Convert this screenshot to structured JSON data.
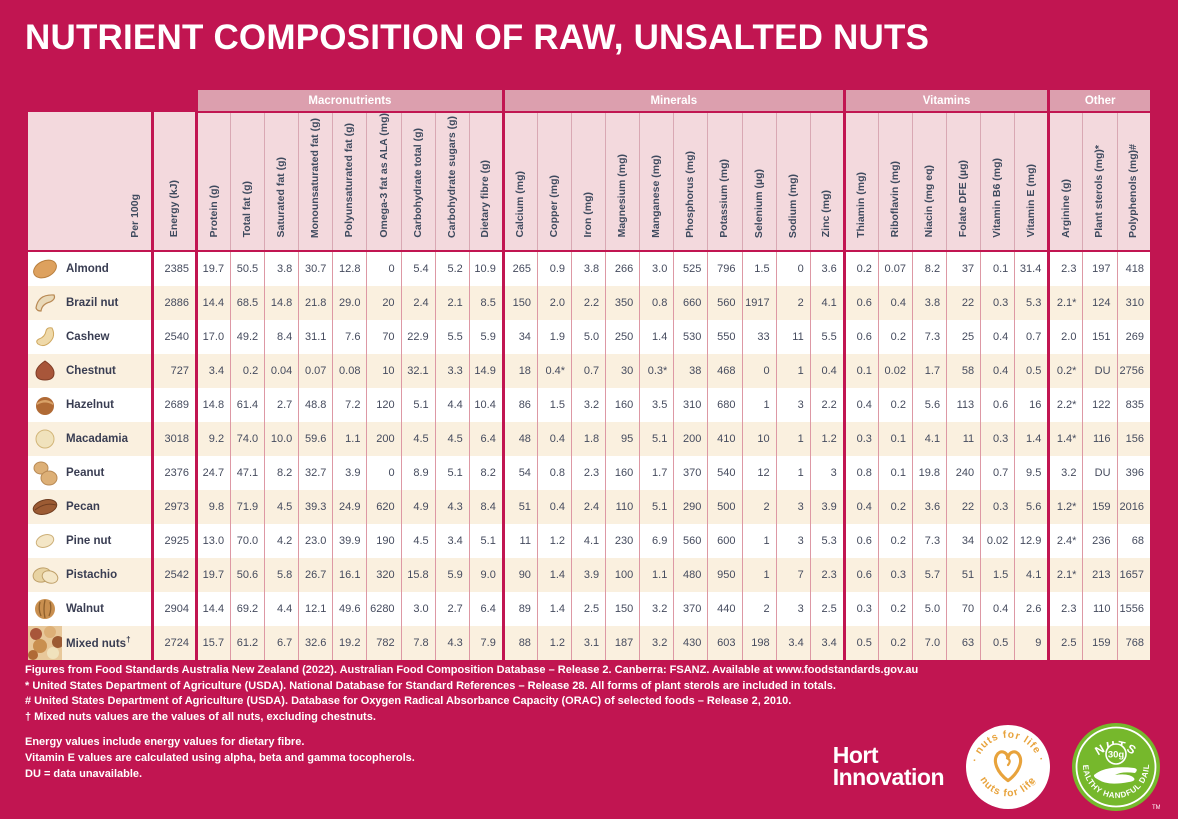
{
  "page_title": "NUTRIENT COMPOSITION OF RAW, UNSALTED NUTS",
  "colors": {
    "background": "#c11551",
    "group_band": "#dc9fae",
    "header_cell": "#f3d9dd",
    "row_stripe": "#faf0df",
    "badge_green": "#76b82c",
    "badge_orange": "#e8a33c",
    "text_dark": "#3e4a5e"
  },
  "chart_data": {
    "type": "table",
    "per_label": "Per 100g",
    "energy_label": "Energy (kJ)",
    "groups": [
      {
        "label": "Macronutrients",
        "span": 9
      },
      {
        "label": "Minerals",
        "span": 10
      },
      {
        "label": "Vitamins",
        "span": 6
      },
      {
        "label": "Other",
        "span": 3
      }
    ],
    "columns": [
      "Protein (g)",
      "Total fat (g)",
      "Saturated fat (g)",
      "Monounsaturated fat (g)",
      "Polyunsaturated fat (g)",
      "Omega-3 fat as ALA (mg)",
      "Carbohydrate total (g)",
      "Carbohydrate sugars (g)",
      "Dietary fibre (g)",
      "Calcium (mg)",
      "Copper (mg)",
      "Iron (mg)",
      "Magnesium (mg)",
      "Manganese (mg)",
      "Phosphorus (mg)",
      "Potassium (mg)",
      "Selenium (µg)",
      "Sodium (mg)",
      "Zinc (mg)",
      "Thiamin (mg)",
      "Riboflavin (mg)",
      "Niacin (mg eq)",
      "Folate DFE (µg)",
      "Vitamin B6 (mg)",
      "Vitamin E (mg)",
      "Arginine (g)",
      "Plant sterols (mg)*",
      "Polyphenols (mg)#"
    ],
    "rows": [
      {
        "name": "Almond",
        "icon": "almond-icon",
        "energy": "2385",
        "values": [
          "19.7",
          "50.5",
          "3.8",
          "30.7",
          "12.8",
          "0",
          "5.4",
          "5.2",
          "10.9",
          "265",
          "0.9",
          "3.8",
          "266",
          "3.0",
          "525",
          "796",
          "1.5",
          "0",
          "3.6",
          "0.2",
          "0.07",
          "8.2",
          "37",
          "0.1",
          "31.4",
          "2.3",
          "197",
          "418"
        ]
      },
      {
        "name": "Brazil nut",
        "icon": "brazil-nut-icon",
        "energy": "2886",
        "values": [
          "14.4",
          "68.5",
          "14.8",
          "21.8",
          "29.0",
          "20",
          "2.4",
          "2.1",
          "8.5",
          "150",
          "2.0",
          "2.2",
          "350",
          "0.8",
          "660",
          "560",
          "1917",
          "2",
          "4.1",
          "0.6",
          "0.4",
          "3.8",
          "22",
          "0.3",
          "5.3",
          "2.1*",
          "124",
          "310"
        ]
      },
      {
        "name": "Cashew",
        "icon": "cashew-icon",
        "energy": "2540",
        "values": [
          "17.0",
          "49.2",
          "8.4",
          "31.1",
          "7.6",
          "70",
          "22.9",
          "5.5",
          "5.9",
          "34",
          "1.9",
          "5.0",
          "250",
          "1.4",
          "530",
          "550",
          "33",
          "11",
          "5.5",
          "0.6",
          "0.2",
          "7.3",
          "25",
          "0.4",
          "0.7",
          "2.0",
          "151",
          "269"
        ]
      },
      {
        "name": "Chestnut",
        "icon": "chestnut-icon",
        "energy": "727",
        "values": [
          "3.4",
          "0.2",
          "0.04",
          "0.07",
          "0.08",
          "10",
          "32.1",
          "3.3",
          "14.9",
          "18",
          "0.4*",
          "0.7",
          "30",
          "0.3*",
          "38",
          "468",
          "0",
          "1",
          "0.4",
          "0.1",
          "0.02",
          "1.7",
          "58",
          "0.4",
          "0.5",
          "0.2*",
          "DU",
          "2756"
        ]
      },
      {
        "name": "Hazelnut",
        "icon": "hazelnut-icon",
        "energy": "2689",
        "values": [
          "14.8",
          "61.4",
          "2.7",
          "48.8",
          "7.2",
          "120",
          "5.1",
          "4.4",
          "10.4",
          "86",
          "1.5",
          "3.2",
          "160",
          "3.5",
          "310",
          "680",
          "1",
          "3",
          "2.2",
          "0.4",
          "0.2",
          "5.6",
          "113",
          "0.6",
          "16",
          "2.2*",
          "122",
          "835"
        ]
      },
      {
        "name": "Macadamia",
        "icon": "macadamia-icon",
        "energy": "3018",
        "values": [
          "9.2",
          "74.0",
          "10.0",
          "59.6",
          "1.1",
          "200",
          "4.5",
          "4.5",
          "6.4",
          "48",
          "0.4",
          "1.8",
          "95",
          "5.1",
          "200",
          "410",
          "10",
          "1",
          "1.2",
          "0.3",
          "0.1",
          "4.1",
          "11",
          "0.3",
          "1.4",
          "1.4*",
          "116",
          "156"
        ]
      },
      {
        "name": "Peanut",
        "icon": "peanut-icon",
        "energy": "2376",
        "values": [
          "24.7",
          "47.1",
          "8.2",
          "32.7",
          "3.9",
          "0",
          "8.9",
          "5.1",
          "8.2",
          "54",
          "0.8",
          "2.3",
          "160",
          "1.7",
          "370",
          "540",
          "12",
          "1",
          "3",
          "0.8",
          "0.1",
          "19.8",
          "240",
          "0.7",
          "9.5",
          "3.2",
          "DU",
          "396"
        ]
      },
      {
        "name": "Pecan",
        "icon": "pecan-icon",
        "energy": "2973",
        "values": [
          "9.8",
          "71.9",
          "4.5",
          "39.3",
          "24.9",
          "620",
          "4.9",
          "4.3",
          "8.4",
          "51",
          "0.4",
          "2.4",
          "110",
          "5.1",
          "290",
          "500",
          "2",
          "3",
          "3.9",
          "0.4",
          "0.2",
          "3.6",
          "22",
          "0.3",
          "5.6",
          "1.2*",
          "159",
          "2016"
        ]
      },
      {
        "name": "Pine nut",
        "icon": "pine-nut-icon",
        "energy": "2925",
        "values": [
          "13.0",
          "70.0",
          "4.2",
          "23.0",
          "39.9",
          "190",
          "4.5",
          "3.4",
          "5.1",
          "11",
          "1.2",
          "4.1",
          "230",
          "6.9",
          "560",
          "600",
          "1",
          "3",
          "5.3",
          "0.6",
          "0.2",
          "7.3",
          "34",
          "0.02",
          "12.9",
          "2.4*",
          "236",
          "68"
        ]
      },
      {
        "name": "Pistachio",
        "icon": "pistachio-icon",
        "energy": "2542",
        "values": [
          "19.7",
          "50.6",
          "5.8",
          "26.7",
          "16.1",
          "320",
          "15.8",
          "5.9",
          "9.0",
          "90",
          "1.4",
          "3.9",
          "100",
          "1.1",
          "480",
          "950",
          "1",
          "7",
          "2.3",
          "0.6",
          "0.3",
          "5.7",
          "51",
          "1.5",
          "4.1",
          "2.1*",
          "213",
          "1657"
        ]
      },
      {
        "name": "Walnut",
        "icon": "walnut-icon",
        "energy": "2904",
        "values": [
          "14.4",
          "69.2",
          "4.4",
          "12.1",
          "49.6",
          "6280",
          "3.0",
          "2.7",
          "6.4",
          "89",
          "1.4",
          "2.5",
          "150",
          "3.2",
          "370",
          "440",
          "2",
          "3",
          "2.5",
          "0.3",
          "0.2",
          "5.0",
          "70",
          "0.4",
          "2.6",
          "2.3",
          "110",
          "1556"
        ]
      },
      {
        "name": "Mixed nuts",
        "sup": "†",
        "icon": "mixed-nuts-icon",
        "energy": "2724",
        "values": [
          "15.7",
          "61.2",
          "6.7",
          "32.6",
          "19.2",
          "782",
          "7.8",
          "4.3",
          "7.9",
          "88",
          "1.2",
          "3.1",
          "187",
          "3.2",
          "430",
          "603",
          "198",
          "3.4",
          "3.4",
          "0.5",
          "0.2",
          "7.0",
          "63",
          "0.5",
          "9",
          "2.5",
          "159",
          "768"
        ]
      }
    ]
  },
  "footnotes": [
    "Figures from Food Standards Australia New Zealand (2022). Australian Food Composition Database – Release 2. Canberra: FSANZ. Available at www.foodstandards.gov.au",
    "* United States Department of Agriculture (USDA). National Database for Standard References – Release 28. All forms of plant sterols are included in totals.",
    "# United States Department of Agriculture (USDA). Database for Oxygen Radical Absorbance Capacity (ORAC) of selected foods – Release 2, 2010.",
    "† Mixed nuts values are the values of all nuts, excluding chestnuts."
  ],
  "notes": [
    "Energy values include energy values for dietary fibre.",
    "Vitamin E values are calculated using alpha, beta and gamma tocopherols.",
    "DU = data unavailable."
  ],
  "logos": {
    "hort_line1": "Hort",
    "hort_line2": "Innovation",
    "nuts_for_life_text": "· nuts for life ·",
    "nuts_for_life_text2": "nuts for life",
    "registered": "®",
    "handful_top": "NUTS",
    "handful_amount": "30g",
    "handful_ring": "HEALTHY HANDFUL DAILY",
    "tm": "TM"
  }
}
